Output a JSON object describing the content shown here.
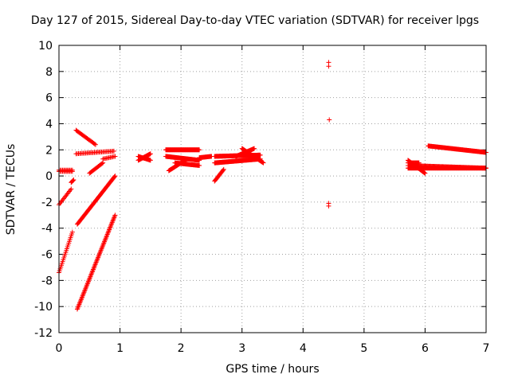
{
  "chart_data": {
    "type": "scatter",
    "title": "Day 127 of 2015, Sidereal Day-to-day VTEC variation (SDTVAR) for receiver lpgs",
    "xlabel": "GPS time / hours",
    "ylabel": "SDTVAR / TECUs",
    "xlim": [
      0,
      7
    ],
    "ylim": [
      -12,
      10
    ],
    "xticks": [
      0,
      1,
      2,
      3,
      4,
      5,
      6,
      7
    ],
    "yticks": [
      -12,
      -10,
      -8,
      -6,
      -4,
      -2,
      0,
      2,
      4,
      6,
      8,
      10
    ],
    "grid": true,
    "marker": "+",
    "color": "#ff0000",
    "segments": [
      {
        "x0": 0.0,
        "x1": 0.22,
        "y0": 0.45,
        "y1": 0.45,
        "step": 0.02
      },
      {
        "x0": 0.0,
        "x1": 0.22,
        "y0": 0.35,
        "y1": 0.35,
        "step": 0.02
      },
      {
        "x0": 0.0,
        "x1": 0.2,
        "y0": -2.2,
        "y1": -1.0,
        "step": 0.015
      },
      {
        "x0": 0.2,
        "x1": 0.24,
        "y0": -0.5,
        "y1": -0.3,
        "step": 0.01
      },
      {
        "x0": 0.0,
        "x1": 0.22,
        "y0": -7.4,
        "y1": -4.3,
        "step": 0.01
      },
      {
        "x0": 0.28,
        "x1": 0.6,
        "y0": 3.5,
        "y1": 2.4,
        "step": 0.015
      },
      {
        "x0": 0.28,
        "x1": 0.9,
        "y0": 1.7,
        "y1": 1.9,
        "step": 0.02
      },
      {
        "x0": 0.5,
        "x1": 0.72,
        "y0": 0.2,
        "y1": 1.0,
        "step": 0.015
      },
      {
        "x0": 0.72,
        "x1": 0.92,
        "y0": 1.3,
        "y1": 1.5,
        "step": 0.02
      },
      {
        "x0": 0.3,
        "x1": 0.92,
        "y0": -3.7,
        "y1": 0.0,
        "step": 0.01
      },
      {
        "x0": 0.3,
        "x1": 0.92,
        "y0": -10.2,
        "y1": -3.0,
        "step": 0.008
      },
      {
        "x0": 1.3,
        "x1": 1.5,
        "y0": 1.2,
        "y1": 1.7,
        "step": 0.01
      },
      {
        "x0": 1.3,
        "x1": 1.5,
        "y0": 1.5,
        "y1": 1.2,
        "step": 0.01
      },
      {
        "x0": 1.75,
        "x1": 2.3,
        "y0": 2.0,
        "y1": 2.0,
        "step": 0.008
      },
      {
        "x0": 1.75,
        "x1": 2.3,
        "y0": 1.5,
        "y1": 1.2,
        "step": 0.008
      },
      {
        "x0": 1.8,
        "x1": 2.1,
        "y0": 0.4,
        "y1": 1.3,
        "step": 0.01
      },
      {
        "x0": 1.9,
        "x1": 2.3,
        "y0": 1.0,
        "y1": 0.8,
        "step": 0.01
      },
      {
        "x0": 2.3,
        "x1": 2.5,
        "y0": 1.4,
        "y1": 1.5,
        "step": 0.01
      },
      {
        "x0": 2.55,
        "x1": 3.3,
        "y0": 1.5,
        "y1": 1.6,
        "step": 0.008
      },
      {
        "x0": 2.55,
        "x1": 3.3,
        "y0": 1.0,
        "y1": 1.3,
        "step": 0.008
      },
      {
        "x0": 2.55,
        "x1": 2.7,
        "y0": -0.4,
        "y1": 0.5,
        "step": 0.01
      },
      {
        "x0": 2.9,
        "x1": 3.2,
        "y0": 1.5,
        "y1": 2.1,
        "step": 0.01
      },
      {
        "x0": 3.0,
        "x1": 3.35,
        "y0": 2.1,
        "y1": 1.0,
        "step": 0.01
      },
      {
        "x0": 5.72,
        "x1": 7.0,
        "y0": 0.6,
        "y1": 0.6,
        "step": 0.01
      },
      {
        "x0": 5.72,
        "x1": 7.0,
        "y0": 0.8,
        "y1": 0.6,
        "step": 0.012
      },
      {
        "x0": 6.05,
        "x1": 7.0,
        "y0": 2.3,
        "y1": 1.8,
        "step": 0.01
      },
      {
        "x0": 5.72,
        "x1": 6.0,
        "y0": 1.2,
        "y1": 0.2,
        "step": 0.01
      },
      {
        "x0": 5.72,
        "x1": 5.9,
        "y0": 1.0,
        "y1": 1.0,
        "step": 0.01
      }
    ],
    "points": [
      {
        "x": 4.42,
        "y": 8.7
      },
      {
        "x": 4.42,
        "y": 8.4
      },
      {
        "x": 4.43,
        "y": 4.3
      },
      {
        "x": 4.42,
        "y": -2.1
      },
      {
        "x": 4.42,
        "y": -2.3
      }
    ]
  }
}
